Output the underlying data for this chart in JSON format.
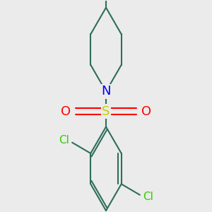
{
  "bg_color": "#ebebeb",
  "bond_color": "#2d6e5b",
  "bond_width": 1.5,
  "atom_colors": {
    "N": "#0000ee",
    "S": "#cccc00",
    "O": "#ff0000",
    "Cl": "#33cc00",
    "C": "#2d6e5b"
  },
  "font_size_N": 13,
  "font_size_S": 13,
  "font_size_O": 13,
  "font_size_Cl": 11,
  "xlim": [
    -1.0,
    1.0
  ],
  "ylim": [
    -1.2,
    1.4
  ]
}
